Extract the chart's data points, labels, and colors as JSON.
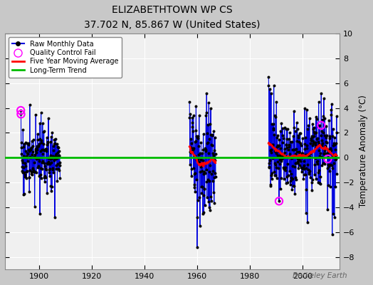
{
  "title": "ELIZABETHTOWN WP CS",
  "subtitle": "37.702 N, 85.867 W (United States)",
  "ylabel": "Temperature Anomaly (°C)",
  "watermark": "Berkeley Earth",
  "xlim": [
    1887,
    2014
  ],
  "ylim": [
    -9,
    10
  ],
  "yticks": [
    -8,
    -6,
    -4,
    -2,
    0,
    2,
    4,
    6,
    8,
    10
  ],
  "xticks": [
    1900,
    1920,
    1940,
    1960,
    1980,
    2000
  ],
  "fig_bg_color": "#c8c8c8",
  "plot_bg_color": "#f0f0f0",
  "grid_color": "#ffffff",
  "raw_line_color": "#0000dd",
  "raw_stem_color": "#6699ff",
  "raw_dot_color": "#000000",
  "qc_color": "#ff00ff",
  "moving_avg_color": "#ff0000",
  "trend_color": "#00bb00",
  "period1_start": 1893,
  "period1_end": 1907,
  "period2_start": 1957,
  "period2_end": 1966,
  "period3_start": 1987,
  "period3_end": 2012,
  "seed": 17
}
